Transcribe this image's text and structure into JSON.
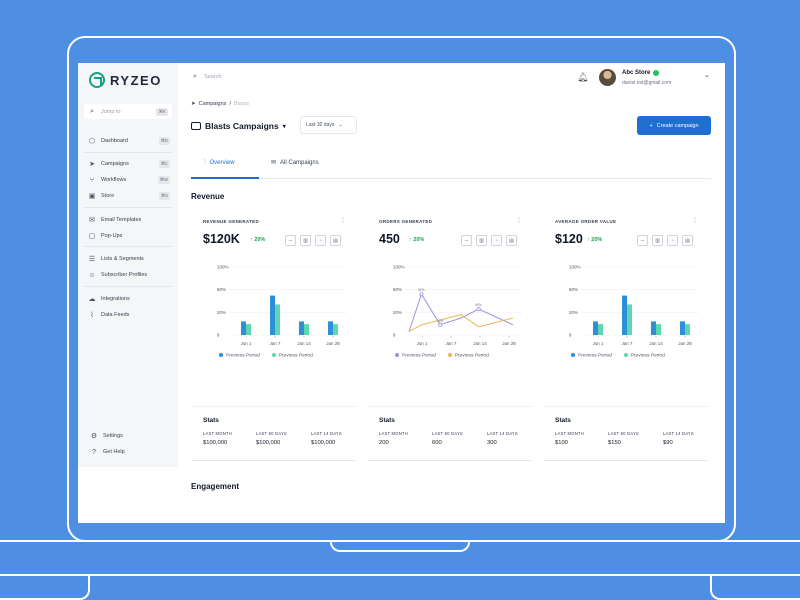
{
  "brand": {
    "name": "RYZEO",
    "color": "#16a085"
  },
  "sidebar": {
    "jump": {
      "placeholder": "Jump to",
      "kbd": "⌘K"
    },
    "items": [
      {
        "label": "Dashboard",
        "kbd": "⌘D",
        "icon": "cube-icon"
      },
      {
        "label": "Campaigns",
        "kbd": "⌘C",
        "icon": "send-icon"
      },
      {
        "label": "Workflows",
        "kbd": "⌘W",
        "icon": "workflow-icon"
      },
      {
        "label": "Store",
        "kbd": "⌘S",
        "icon": "store-icon"
      },
      {
        "label": "Email Templates",
        "icon": "mail-icon"
      },
      {
        "label": "Pop-Ups",
        "icon": "popup-icon"
      },
      {
        "label": "Lists & Segments",
        "icon": "list-icon"
      },
      {
        "label": "Subscriber Profiles",
        "icon": "user-icon"
      },
      {
        "label": "Integrations",
        "icon": "cloud-icon"
      },
      {
        "label": "Data Feeds",
        "icon": "feed-icon"
      }
    ],
    "bottom": [
      {
        "label": "Settings",
        "icon": "gear-icon"
      },
      {
        "label": "Get Help",
        "icon": "help-icon"
      }
    ]
  },
  "topbar": {
    "search_placeholder": "Search",
    "user": {
      "name": "Abc Store",
      "email": "daniel.rist@gmail.com"
    }
  },
  "breadcrumb": {
    "parent": "Campaigns",
    "current": "Blasts"
  },
  "page": {
    "title": "Blasts Campaigns",
    "date_range": "Last 30 days",
    "create_label": "Create campaign"
  },
  "tabs": [
    {
      "label": "Overview",
      "active": true
    },
    {
      "label": "All Campaigns",
      "active": false
    }
  ],
  "sections": {
    "revenue": "Revenue",
    "engagement": "Engagement"
  },
  "colors": {
    "current": "#2d8fd8",
    "previous": "#5fd6b1",
    "line_current": "#a090e0",
    "line_previous": "#f0b650",
    "accent": "#1f6fd0"
  },
  "cards": [
    {
      "label": "REVENUE GENERATED",
      "value": "$120K",
      "change": "20%",
      "stats": {
        "title": "Stats",
        "items": [
          {
            "label": "LAST MONTH",
            "value": "$100,000"
          },
          {
            "label": "LAST 90 DAYS",
            "value": "$100,000"
          },
          {
            "label": "LAST 14 DAYS",
            "value": "$100,000"
          }
        ]
      }
    },
    {
      "label": "ORDERS GENERATED",
      "value": "450",
      "change": "20%",
      "stats": {
        "title": "Stats",
        "items": [
          {
            "label": "LAST MONTH",
            "value": "200"
          },
          {
            "label": "LAST 90 DAYS",
            "value": "600"
          },
          {
            "label": "LAST 14 DAYS",
            "value": "300"
          }
        ]
      }
    },
    {
      "label": "AVERAGE ORDER VALUE",
      "value": "$120",
      "change": "20%",
      "stats": {
        "title": "Stats",
        "items": [
          {
            "label": "LAST MONTH",
            "value": "$100"
          },
          {
            "label": "LAST 90 DAYS",
            "value": "$150"
          },
          {
            "label": "LAST 14 DAYS",
            "value": "$90"
          }
        ]
      }
    }
  ],
  "chart_data": [
    {
      "type": "bar",
      "categories": [
        "Jun 1",
        "Jan 7",
        "Jan 14",
        "Jan 28"
      ],
      "yticks": [
        "100%",
        "60%",
        "20%",
        "8"
      ],
      "series": [
        {
          "name": "Previous Period",
          "values": [
            20,
            58,
            20,
            20
          ]
        },
        {
          "name": "Previous Period",
          "values": [
            16,
            45,
            16,
            16
          ]
        }
      ]
    },
    {
      "type": "line",
      "categories": [
        "Jun 1",
        "Jan 7",
        "Jan 14",
        "Jan 28"
      ],
      "yticks": [
        "100%",
        "60%",
        "20%",
        "8"
      ],
      "x": [
        0,
        0.12,
        0.3,
        0.5,
        0.67,
        1.0
      ],
      "series": [
        {
          "name": "Previous Period",
          "values": [
            5,
            60,
            15,
            25,
            38,
            15
          ]
        },
        {
          "name": "Previous Period",
          "values": [
            5,
            15,
            22,
            30,
            12,
            25
          ]
        }
      ],
      "annotations": [
        "80%",
        "30%",
        "60%"
      ]
    },
    {
      "type": "bar",
      "categories": [
        "Jun 1",
        "Jan 7",
        "Jan 14",
        "Jan 28"
      ],
      "yticks": [
        "100%",
        "60%",
        "20%",
        "8"
      ],
      "series": [
        {
          "name": "Previous Period",
          "values": [
            20,
            58,
            20,
            20
          ]
        },
        {
          "name": "Previous Period",
          "values": [
            16,
            45,
            16,
            16
          ]
        }
      ]
    }
  ]
}
